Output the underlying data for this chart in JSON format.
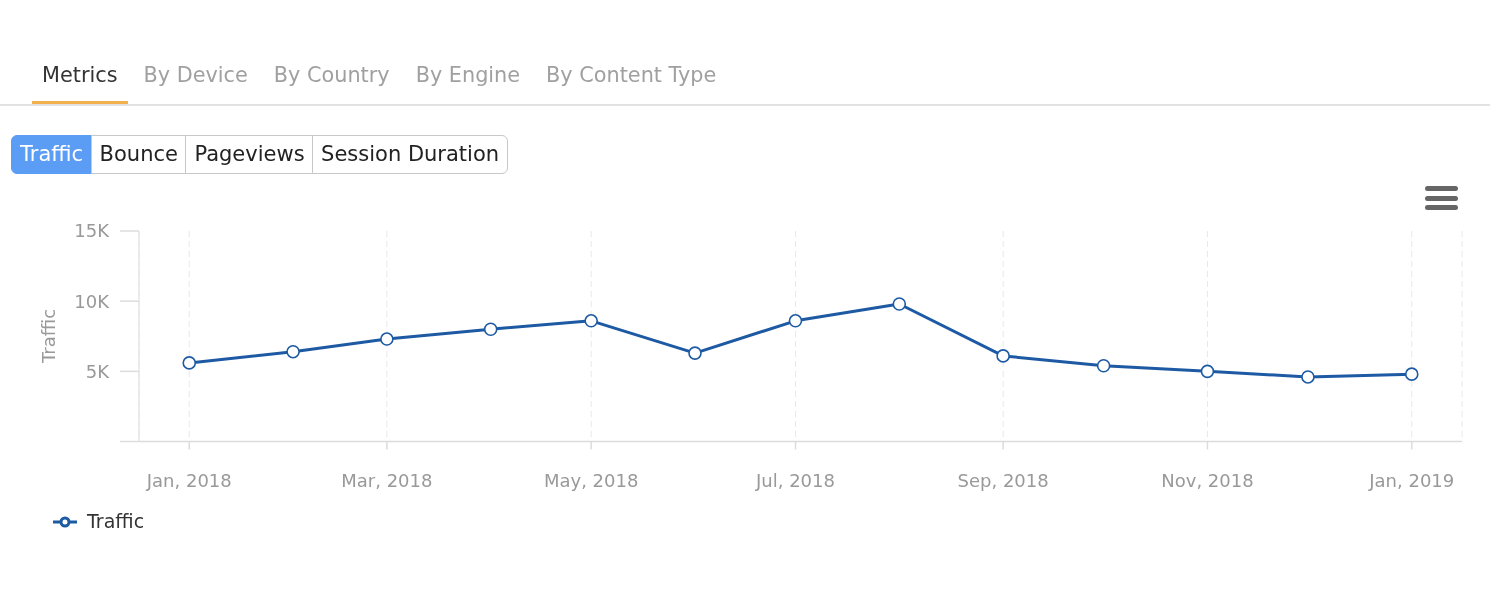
{
  "chart_data": {
    "type": "line",
    "ylabel": "Traffic",
    "x": [
      "2018-01",
      "2018-02",
      "2018-03",
      "2018-04",
      "2018-05",
      "2018-06",
      "2018-07",
      "2018-08",
      "2018-09",
      "2018-10",
      "2018-11",
      "2018-12",
      "2019-01"
    ],
    "series": [
      {
        "name": "Traffic",
        "color": "#1d5aa3",
        "values": [
          5600,
          6400,
          7300,
          8000,
          8600,
          6300,
          8600,
          9800,
          6100,
          5400,
          5000,
          4600,
          4800
        ]
      }
    ],
    "xlim": [
      "2017-12-17",
      "2019-01-16"
    ],
    "xticks": [
      {
        "value": "2018-01",
        "label": "Jan, 2018"
      },
      {
        "value": "2018-03",
        "label": "Mar, 2018"
      },
      {
        "value": "2018-05",
        "label": "May, 2018"
      },
      {
        "value": "2018-07",
        "label": "Jul, 2018"
      },
      {
        "value": "2018-09",
        "label": "Sep, 2018"
      },
      {
        "value": "2018-11",
        "label": "Nov, 2018"
      },
      {
        "value": "2019-01",
        "label": "Jan, 2019"
      }
    ],
    "ylim": [
      0,
      15000
    ],
    "yticks": [
      {
        "value": 0,
        "label": null
      },
      {
        "value": 5000,
        "label": "5K"
      },
      {
        "value": 10000,
        "label": "10K"
      },
      {
        "value": 15000,
        "label": "15K"
      }
    ],
    "grid": "x",
    "legend": "bottom left",
    "marker": "circle",
    "line_style": "solid",
    "annotations": [
      "Metrics",
      "By Device",
      "By Country",
      "By Engine",
      "By Content Type",
      "Traffic",
      "Bounce",
      "Pageviews",
      "Session Duration"
    ]
  }
}
